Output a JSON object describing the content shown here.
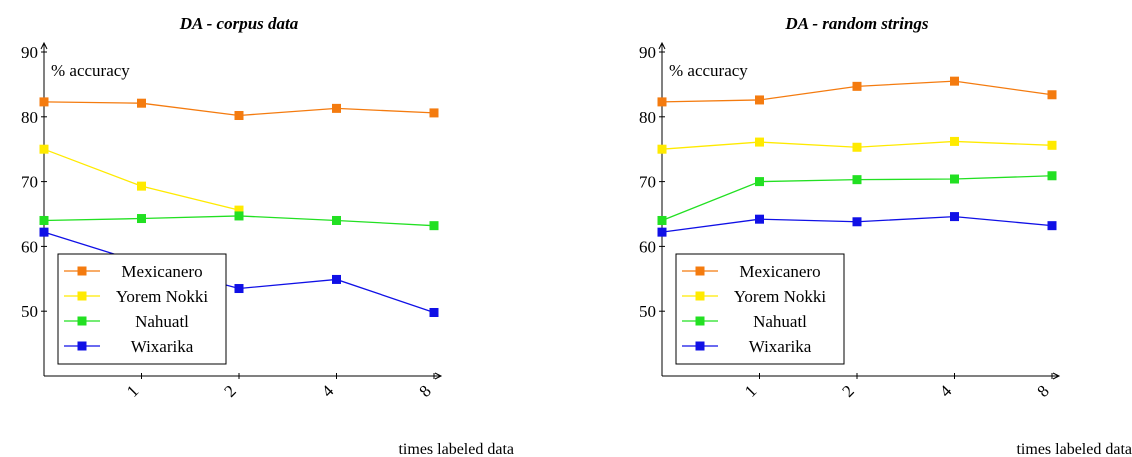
{
  "chart_data": [
    {
      "type": "line",
      "title": "DA - corpus data",
      "ylabel": "% accuracy",
      "xlabel": "times labeled data",
      "categories": [
        "",
        "1",
        "2",
        "4",
        "8"
      ],
      "ylim": [
        40,
        90
      ],
      "yticks": [
        50,
        60,
        70,
        80,
        90
      ],
      "grid": false,
      "legend_position": "bottom-left",
      "series": [
        {
          "name": "Mexicanero",
          "color": "#f47b0f",
          "values": [
            82.3,
            82.1,
            80.2,
            81.3,
            80.6
          ]
        },
        {
          "name": "Yorem Nokki",
          "color": "#ffea00",
          "values": [
            75.0,
            69.3,
            65.6,
            null,
            null
          ]
        },
        {
          "name": "Nahuatl",
          "color": "#22e022",
          "values": [
            64.0,
            64.3,
            64.7,
            64.0,
            63.2
          ]
        },
        {
          "name": "Wixarika",
          "color": "#1010e6",
          "values": [
            62.2,
            57.5,
            53.5,
            54.9,
            49.8
          ]
        }
      ]
    },
    {
      "type": "line",
      "title": "DA - random strings",
      "ylabel": "% accuracy",
      "xlabel": "times labeled data",
      "categories": [
        "",
        "1",
        "2",
        "4",
        "8"
      ],
      "ylim": [
        40,
        90
      ],
      "yticks": [
        50,
        60,
        70,
        80,
        90
      ],
      "grid": false,
      "legend_position": "bottom-left",
      "series": [
        {
          "name": "Mexicanero",
          "color": "#f47b0f",
          "values": [
            82.3,
            82.6,
            84.7,
            85.5,
            83.4
          ]
        },
        {
          "name": "Yorem Nokki",
          "color": "#ffea00",
          "values": [
            75.0,
            76.1,
            75.3,
            76.2,
            75.6
          ]
        },
        {
          "name": "Nahuatl",
          "color": "#22e022",
          "values": [
            64.0,
            70.0,
            70.3,
            70.4,
            70.9
          ]
        },
        {
          "name": "Wixarika",
          "color": "#1010e6",
          "values": [
            62.2,
            64.2,
            63.8,
            64.6,
            63.2
          ]
        }
      ]
    }
  ]
}
